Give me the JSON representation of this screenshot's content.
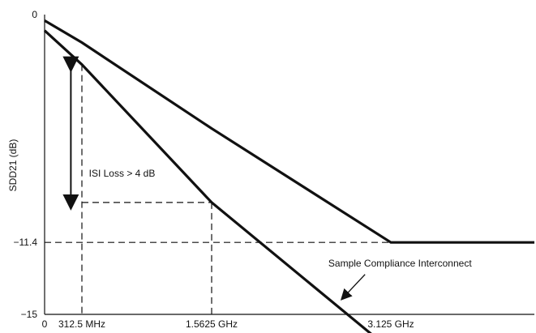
{
  "chart_data": {
    "type": "line",
    "title": "",
    "xlabel": "",
    "ylabel": "SDD21 (dB)",
    "x_tick_labels": [
      "0",
      "312.5 MHz",
      "1.5625 GHz",
      "3.125 GHz"
    ],
    "x_tick_values": [
      0,
      0.3125,
      1.5625,
      3.125
    ],
    "y_tick_labels": [
      "0",
      "−11.4",
      "−15"
    ],
    "y_tick_values": [
      0,
      -11.4,
      -15
    ],
    "xlim": [
      0,
      5.0
    ],
    "ylim": [
      -15,
      0
    ],
    "grid": false,
    "legend": "none",
    "series": [
      {
        "x": [
          0.0,
          0.3125,
          1.5625,
          3.125,
          5.0
        ],
        "y": [
          -0.3,
          -1.4,
          -5.7,
          -11.4,
          -11.4
        ]
      },
      {
        "x": [
          0.0,
          0.3125,
          1.5625,
          3.0
        ],
        "y": [
          -0.8,
          -2.5,
          -9.4,
          -16.2
        ]
      }
    ],
    "guides": {
      "horizontal": [
        {
          "y": -11.4,
          "x_from": 0,
          "x_to": 5.0
        },
        {
          "y": -9.4,
          "x_from": 0.3125,
          "x_to": 1.5625
        }
      ],
      "vertical": [
        {
          "x": 0.3125,
          "y_from": -2.5,
          "y_to": -15
        },
        {
          "x": 1.5625,
          "y_from": -9.4,
          "y_to": -15
        }
      ]
    },
    "annotations": [
      {
        "text": "ISI Loss > 4 dB",
        "arrow": "double",
        "x": 0.22,
        "y_from": -2.5,
        "y_to": -9.4,
        "text_x": 0.38,
        "text_y": -8.1
      },
      {
        "text": "Sample Compliance Interconnect",
        "pointer_from": [
          2.9,
          -13.0
        ],
        "pointer_to": [
          2.72,
          -14.1
        ],
        "text_x": 2.58,
        "text_y": -12.6
      }
    ]
  }
}
